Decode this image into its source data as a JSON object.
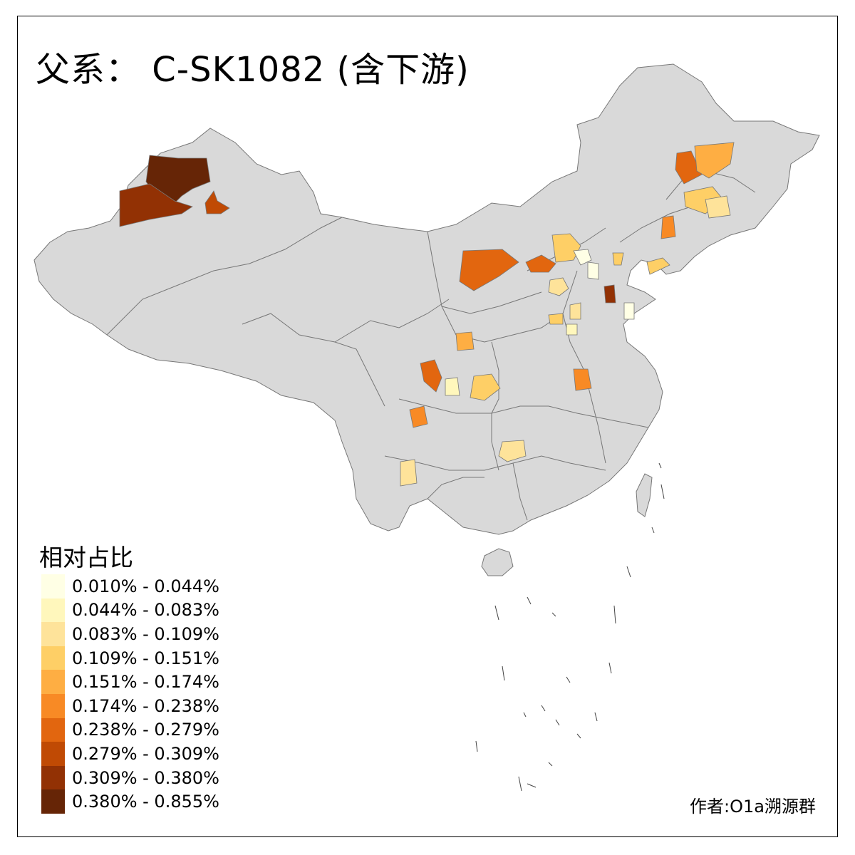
{
  "title": "父系： C-SK1082 (含下游)",
  "legend": {
    "title": "相对占比",
    "items": [
      {
        "label": "0.010% - 0.044%",
        "color": "#FFFFE5"
      },
      {
        "label": "0.044% - 0.083%",
        "color": "#FFF7BC"
      },
      {
        "label": "0.083% - 0.109%",
        "color": "#FEE39A"
      },
      {
        "label": "0.109% - 0.151%",
        "color": "#FECF66"
      },
      {
        "label": "0.151% - 0.174%",
        "color": "#FEAE43"
      },
      {
        "label": "0.174% - 0.238%",
        "color": "#F88A25"
      },
      {
        "label": "0.238% - 0.279%",
        "color": "#E2660F"
      },
      {
        "label": "0.279% - 0.309%",
        "color": "#C04A04"
      },
      {
        "label": "0.309% - 0.380%",
        "color": "#923104"
      },
      {
        "label": "0.380% - 0.855%",
        "color": "#662506"
      }
    ]
  },
  "credit": "作者:O1a溯源群",
  "colors": {
    "base_region": "#D9D9D9",
    "border": "#777777"
  }
}
